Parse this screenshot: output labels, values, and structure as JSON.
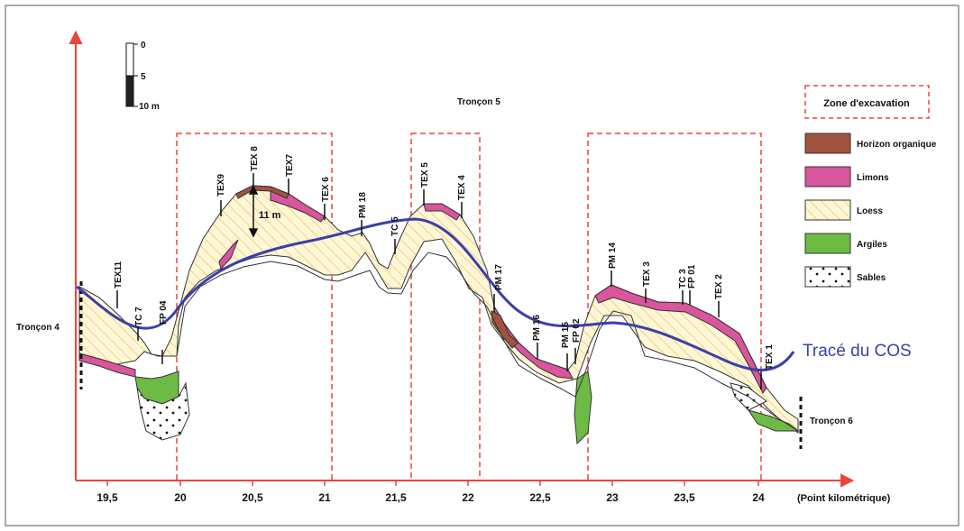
{
  "scale_bar": {
    "labels": [
      "0",
      "5",
      "10 m"
    ]
  },
  "section_labels": {
    "left": "Tronçon 4",
    "center": "Tronçon 5",
    "right": "Tronçon 6"
  },
  "depth_annotation": "11 m",
  "cos_label": "Tracé du COS",
  "x_axis": {
    "ticks": [
      "19,5",
      "20",
      "20,5",
      "21",
      "21,5",
      "22",
      "22,5",
      "23",
      "23,5",
      "24"
    ],
    "unit_label": "(Point kilométrique)"
  },
  "drill_labels": [
    "TEX11",
    "TC 7",
    "FP 04",
    "TEX9",
    "TEX 8",
    "TEX7",
    "TEX 6",
    "PM 18",
    "TC 5",
    "TEX 5",
    "TEX 4",
    "PM 17",
    "PM 16",
    "PM 15",
    "FP 02",
    "PM 14",
    "TEX 3",
    "TC 3",
    "FP 01",
    "TEX 2",
    "TEX 1"
  ],
  "legend": {
    "zone": "Zone d'excavation",
    "items": [
      {
        "label": "Horizon organique",
        "color": "#a0523f",
        "pattern": "solid"
      },
      {
        "label": "Limons",
        "color": "#d9559c",
        "pattern": "solid"
      },
      {
        "label": "Loess",
        "color": "#f4e4a0",
        "pattern": "hatch"
      },
      {
        "label": "Argiles",
        "color": "#6dbb45",
        "pattern": "solid"
      },
      {
        "label": "Sables",
        "color": "#ffffff",
        "pattern": "dots"
      }
    ]
  },
  "colors": {
    "axis": "#e8463c",
    "cos_line": "#3b3fa8",
    "zone_box": "#e8463c",
    "outline": "#333333"
  }
}
